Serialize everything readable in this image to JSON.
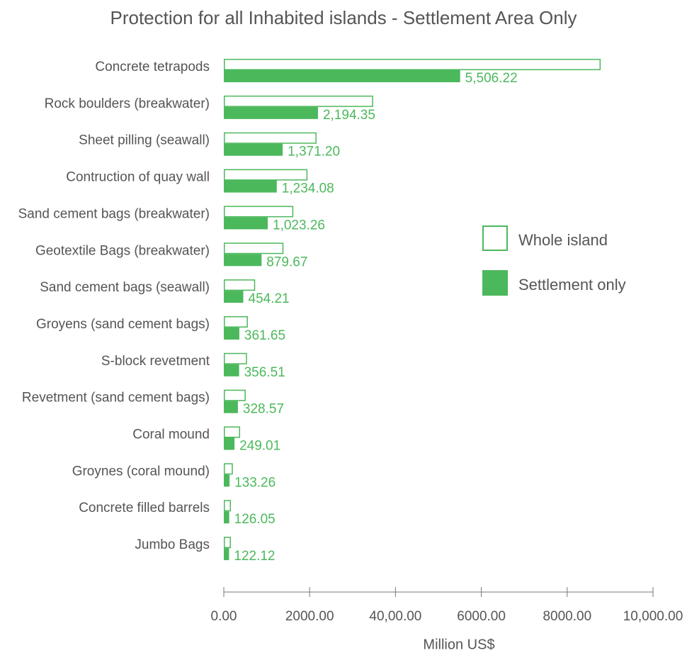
{
  "chart_data": {
    "type": "hbar",
    "title": "Protection for all Inhabited islands - Settlement Area Only",
    "x_label": "Million US$",
    "categories": [
      "Concrete tetrapods",
      "Rock boulders (breakwater)",
      "Sheet pilling (seawall)",
      "Contruction of quay wall",
      "Sand cement bags (breakwater)",
      "Geotextile Bags (breakwater)",
      "Sand cement bags (seawall)",
      "Groyens (sand cement bags)",
      "S-block revetment",
      "Revetment (sand cement bags)",
      "Coral mound",
      "Groynes (coral mound)",
      "Concrete filled barrels",
      "Jumbo Bags"
    ],
    "series": [
      {
        "name": "Whole island",
        "color": "#4cb85c",
        "fill": "#ffffff",
        "values": [
          8780,
          3480,
          2160,
          1950,
          1620,
          1390,
          730,
          560,
          540,
          510,
          380,
          210,
          165,
          165
        ]
      },
      {
        "name": "Settlement only",
        "color": "#4cb85c",
        "fill": "#4cb85c",
        "values": [
          5506.22,
          2194.35,
          1371.2,
          1234.08,
          1023.26,
          879.67,
          454.21,
          361.65,
          356.51,
          328.57,
          249.01,
          133.26,
          126.05,
          122.12
        ],
        "value_labels": [
          "5,506.22",
          "2,194.35",
          "1,371.20",
          "1,234.08",
          "1,023.26",
          "879.67",
          "454.21",
          "361.65",
          "356.51",
          "328.57",
          "249.01",
          "133.26",
          "126.05",
          "122.12"
        ]
      }
    ],
    "xlim": [
      0,
      10000
    ],
    "xticks": [
      {
        "value": 0,
        "label": "0.00"
      },
      {
        "value": 2000,
        "label": "2000.00"
      },
      {
        "value": 4000,
        "label": "40,00.00"
      },
      {
        "value": 6000,
        "label": "6000.00"
      },
      {
        "value": 8000,
        "label": "8000.00"
      },
      {
        "value": 10000,
        "label": "10,000.00"
      }
    ],
    "legend": "right"
  }
}
